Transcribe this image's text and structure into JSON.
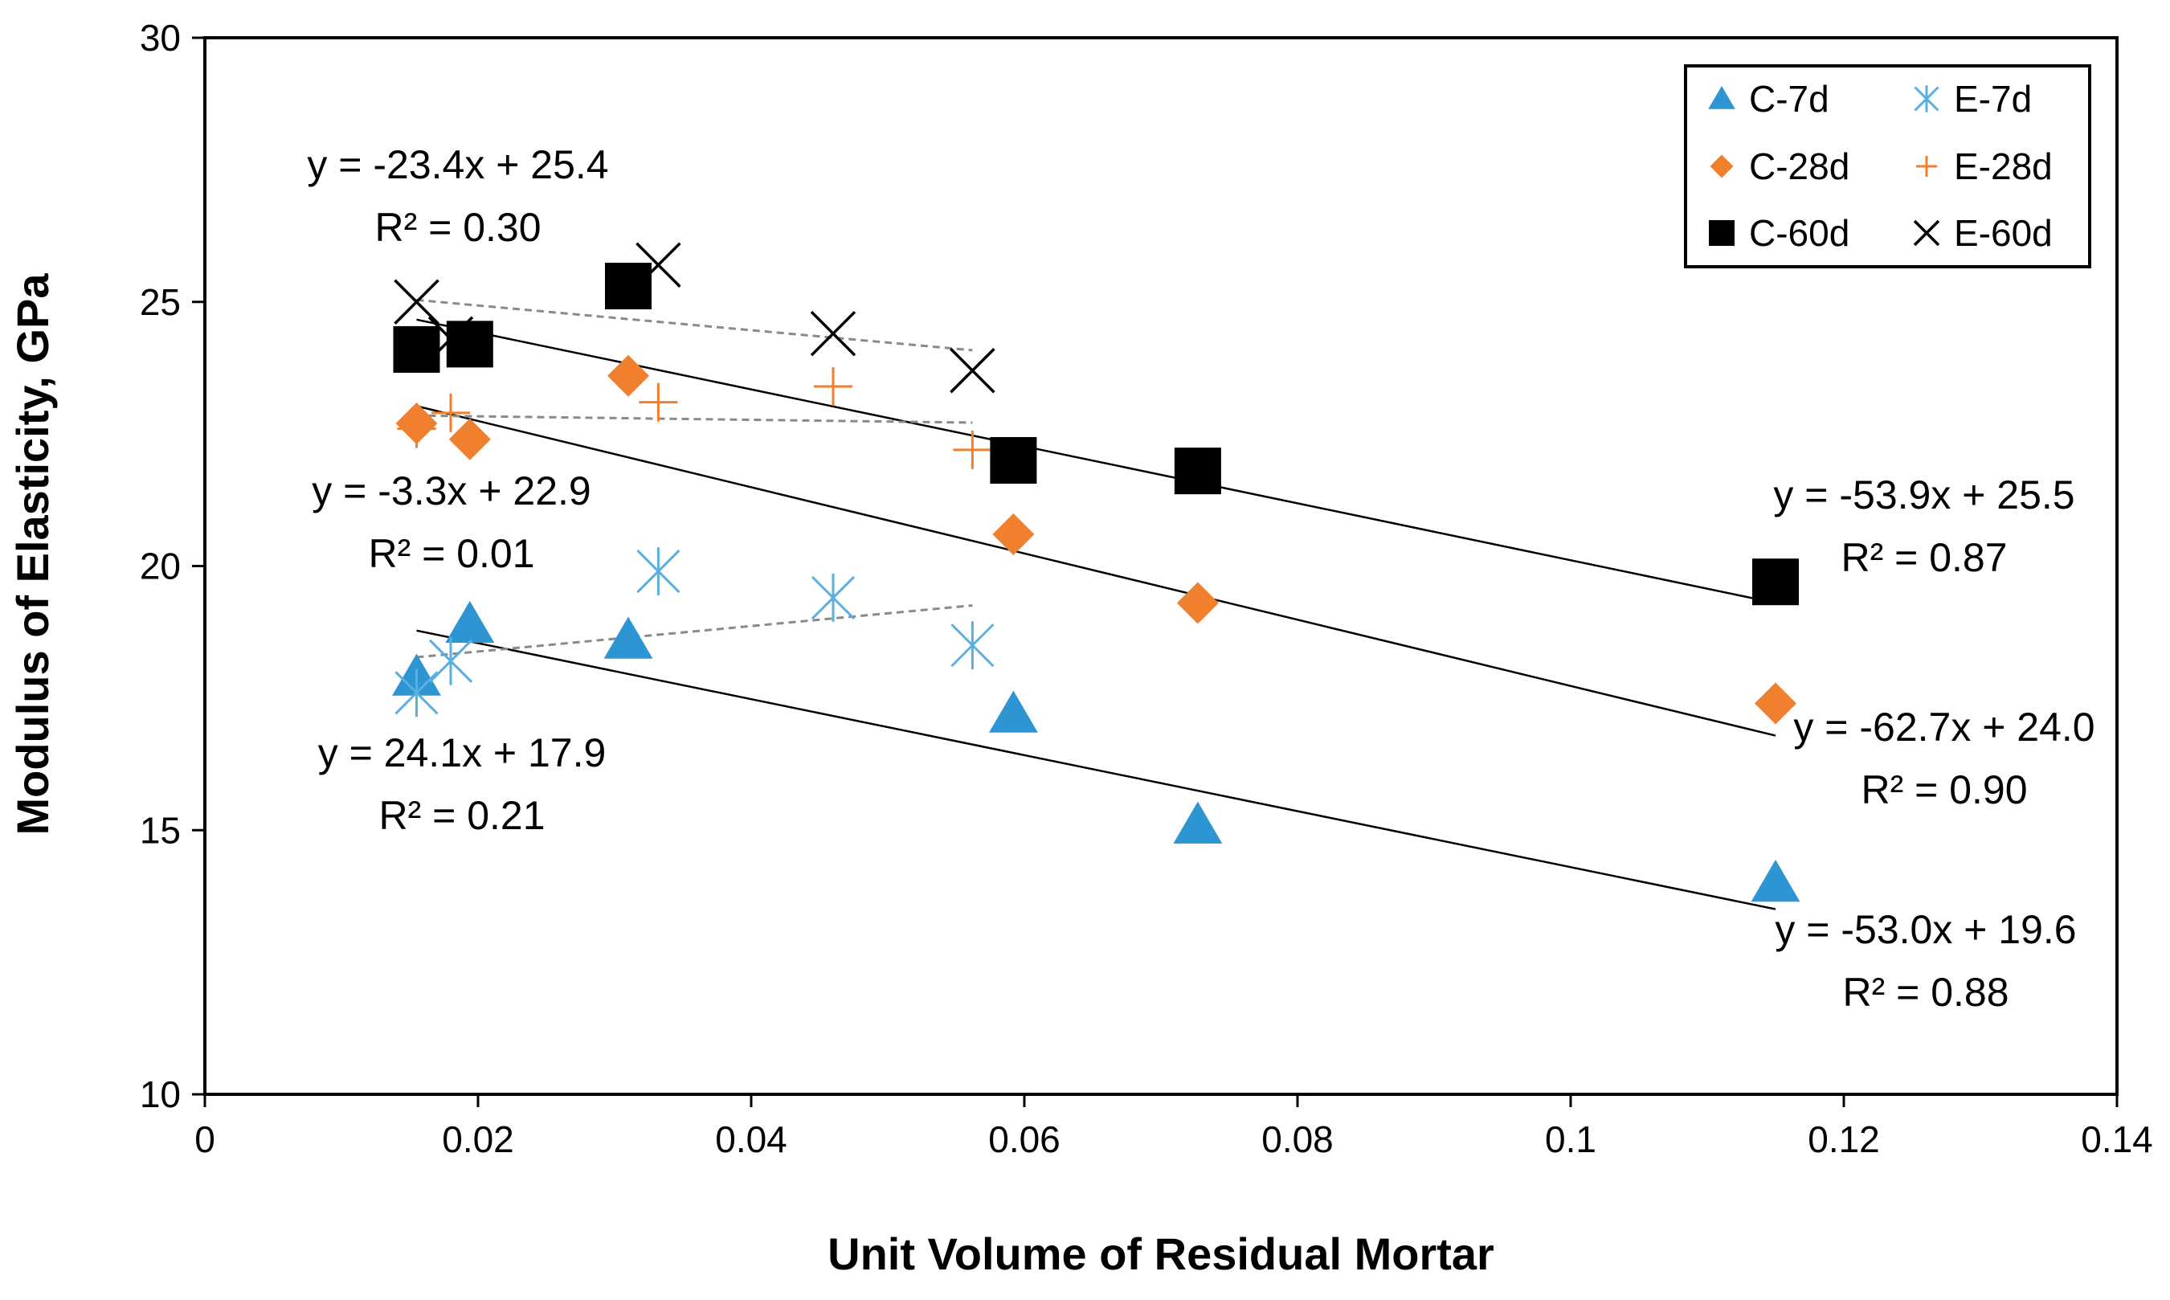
{
  "chart_data": {
    "type": "scatter",
    "title": "",
    "xlabel": "Unit Volume of Residual Mortar",
    "ylabel": "Modulus of Elasticity, GPa",
    "xlim": [
      0,
      0.14
    ],
    "ylim": [
      10,
      30
    ],
    "x_ticks": [
      "0",
      "0.02",
      "0.04",
      "0.06",
      "0.08",
      "0.1",
      "0.12",
      "0.14"
    ],
    "y_ticks": [
      "10",
      "15",
      "20",
      "25",
      "30"
    ],
    "grid": false,
    "legend_position": "top-right",
    "series": [
      {
        "name": "C-7d",
        "marker": "triangle",
        "color": "#2e95d3",
        "x": [
          0.0155,
          0.0194,
          0.031,
          0.0592,
          0.0727,
          0.115
        ],
        "y": [
          17.9,
          18.9,
          18.6,
          17.2,
          15.1,
          14.0
        ]
      },
      {
        "name": "E-7d",
        "marker": "asterisk",
        "color": "#5aaee0",
        "x": [
          0.0155,
          0.018,
          0.0332,
          0.046,
          0.0562
        ],
        "y": [
          17.6,
          18.2,
          19.9,
          19.4,
          18.5
        ]
      },
      {
        "name": "C-28d",
        "marker": "diamond",
        "color": "#f07f2e",
        "x": [
          0.0155,
          0.0194,
          0.031,
          0.0592,
          0.0727,
          0.115
        ],
        "y": [
          22.7,
          22.4,
          23.6,
          20.6,
          19.3,
          17.4
        ]
      },
      {
        "name": "E-28d",
        "marker": "plus",
        "color": "#f07f2e",
        "x": [
          0.0155,
          0.018,
          0.0332,
          0.046,
          0.0562
        ],
        "y": [
          22.6,
          22.9,
          23.1,
          23.4,
          22.2
        ]
      },
      {
        "name": "C-60d",
        "marker": "square",
        "color": "#000000",
        "x": [
          0.0155,
          0.0194,
          0.031,
          0.0592,
          0.0727,
          0.115
        ],
        "y": [
          24.1,
          24.2,
          25.3,
          22.0,
          21.8,
          19.7
        ]
      },
      {
        "name": "E-60d",
        "marker": "x",
        "color": "#000000",
        "x": [
          0.0155,
          0.018,
          0.0332,
          0.046,
          0.0562
        ],
        "y": [
          25.0,
          24.3,
          25.7,
          24.4,
          23.7
        ]
      }
    ],
    "trendlines": [
      {
        "series": "C-7d",
        "style": "solid",
        "x": [
          0.0155,
          0.115
        ],
        "slope": -53.0,
        "intercept": 19.6
      },
      {
        "series": "C-28d",
        "style": "solid",
        "x": [
          0.0155,
          0.115
        ],
        "slope": -62.7,
        "intercept": 24.0
      },
      {
        "series": "C-60d",
        "style": "solid",
        "x": [
          0.0155,
          0.115
        ],
        "slope": -53.9,
        "intercept": 25.5
      },
      {
        "series": "E-7d",
        "style": "dashed",
        "x": [
          0.0155,
          0.0562
        ],
        "slope": 24.1,
        "intercept": 17.9
      },
      {
        "series": "E-28d",
        "style": "dashed",
        "x": [
          0.0155,
          0.0562
        ],
        "slope": -3.3,
        "intercept": 22.9
      },
      {
        "series": "E-60d",
        "style": "dashed",
        "x": [
          0.0155,
          0.0562
        ],
        "slope": -23.4,
        "intercept": 25.4
      }
    ],
    "annotations": [
      {
        "series": "E-60d",
        "equation": "y = -23.4x + 25.4",
        "r2": "R² = 0.30"
      },
      {
        "series": "E-28d",
        "equation": "y = -3.3x + 22.9",
        "r2": "R² = 0.01"
      },
      {
        "series": "E-7d",
        "equation": "y = 24.1x + 17.9",
        "r2": "R² = 0.21"
      },
      {
        "series": "C-60d",
        "equation": "y = -53.9x + 25.5",
        "r2": "R² = 0.87"
      },
      {
        "series": "C-28d",
        "equation": "y = -62.7x + 24.0",
        "r2": "R² = 0.90"
      },
      {
        "series": "C-7d",
        "equation": "y = -53.0x + 19.6",
        "r2": "R² = 0.88"
      }
    ],
    "legend": [
      {
        "label": "C-7d",
        "marker": "triangle",
        "color": "#2e95d3"
      },
      {
        "label": "E-7d",
        "marker": "asterisk",
        "color": "#5aaee0"
      },
      {
        "label": "C-28d",
        "marker": "diamond",
        "color": "#f07f2e"
      },
      {
        "label": "E-28d",
        "marker": "plus",
        "color": "#f07f2e"
      },
      {
        "label": "C-60d",
        "marker": "square",
        "color": "#000000"
      },
      {
        "label": "E-60d",
        "marker": "x",
        "color": "#000000"
      }
    ]
  }
}
